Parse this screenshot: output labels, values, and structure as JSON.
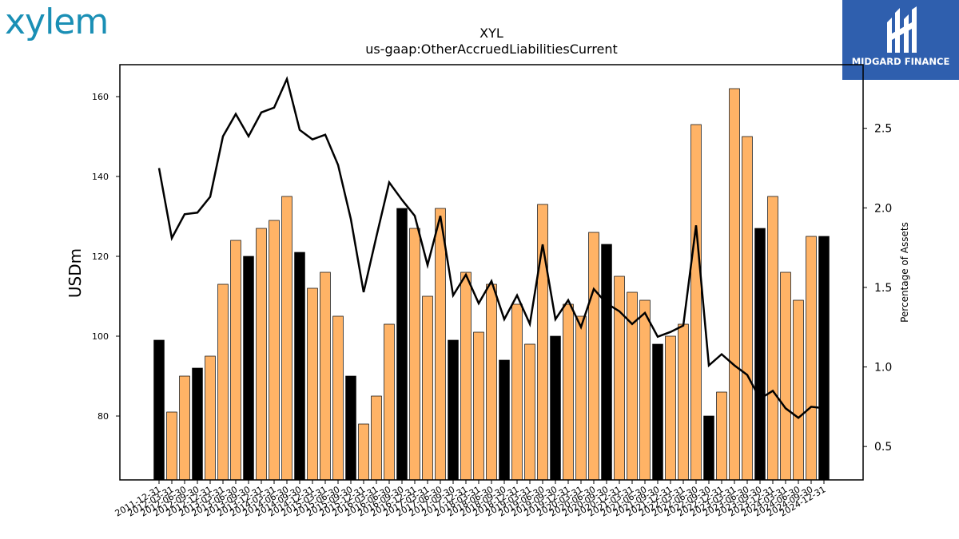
{
  "logos": {
    "left": "xylem",
    "right": "MIDGARD FINANCE"
  },
  "chart_data": {
    "type": "bar",
    "title": "XYL",
    "subtitle": "us-gaap:OtherAccruedLiabilitiesCurrent",
    "ylabel": "USDm",
    "y2label": "Percentage of Assets",
    "ylim": [
      64,
      168
    ],
    "y2lim": [
      0.29,
      2.9
    ],
    "yticks": [
      80,
      100,
      120,
      140,
      160
    ],
    "y2ticks": [
      0.5,
      1.0,
      1.5,
      2.0,
      2.5
    ],
    "bar_colors": {
      "highlight": "#000000",
      "normal": "#ffb366"
    },
    "line_color": "#000000",
    "categories": [
      "2011-12-31",
      "2012-03-31",
      "2012-06-30",
      "2012-09-30",
      "2012-12-31",
      "2013-03-31",
      "2013-06-30",
      "2013-09-30",
      "2013-12-31",
      "2014-03-31",
      "2014-06-30",
      "2014-09-30",
      "2014-12-31",
      "2015-03-31",
      "2015-06-30",
      "2015-09-30",
      "2015-12-31",
      "2016-03-31",
      "2016-06-30",
      "2016-09-30",
      "2016-12-31",
      "2017-03-31",
      "2017-06-30",
      "2017-09-30",
      "2017-12-31",
      "2018-03-31",
      "2018-06-30",
      "2018-09-30",
      "2018-12-31",
      "2019-03-31",
      "2019-06-30",
      "2019-09-30",
      "2019-12-31",
      "2020-03-31",
      "2020-06-30",
      "2020-09-30",
      "2020-12-31",
      "2021-03-31",
      "2021-06-30",
      "2021-09-30",
      "2021-12-31",
      "2022-03-31",
      "2022-06-30",
      "2022-09-30",
      "2022-12-31",
      "2023-03-31",
      "2023-06-30",
      "2023-09-30",
      "2023-12-31",
      "2024-03-31",
      "2024-06-30",
      "2024-09-30",
      "2024-12-31"
    ],
    "series": [
      {
        "type": "bar",
        "values": [
          99,
          81,
          90,
          92,
          95,
          113,
          124,
          120,
          127,
          129,
          135,
          121,
          112,
          116,
          105,
          90,
          78,
          85,
          103,
          132,
          127,
          110,
          132,
          99,
          116,
          101,
          113,
          94,
          108,
          98,
          133,
          100,
          108,
          105,
          126,
          123,
          115,
          111,
          109,
          98,
          100,
          103,
          153,
          80,
          86,
          162,
          150,
          127,
          135,
          116,
          109,
          125,
          125
        ]
      },
      {
        "type": "line",
        "values": [
          2.25,
          1.81,
          1.96,
          1.97,
          2.07,
          2.45,
          2.59,
          2.45,
          2.6,
          2.63,
          2.81,
          2.49,
          2.43,
          2.46,
          2.27,
          1.93,
          1.47,
          1.82,
          2.16,
          2.05,
          1.95,
          1.64,
          1.95,
          1.45,
          1.58,
          1.4,
          1.54,
          1.3,
          1.45,
          1.27,
          1.77,
          1.3,
          1.42,
          1.25,
          1.49,
          1.4,
          1.35,
          1.27,
          1.34,
          1.19,
          1.22,
          1.26,
          1.89,
          1.01,
          1.08,
          1.01,
          0.95,
          0.8,
          0.85,
          0.74,
          0.68,
          0.75,
          0.74
        ]
      }
    ],
    "highlight_indices": [
      0,
      3,
      7,
      11,
      15,
      19,
      23,
      27,
      31,
      35,
      39,
      43,
      47,
      52
    ]
  }
}
